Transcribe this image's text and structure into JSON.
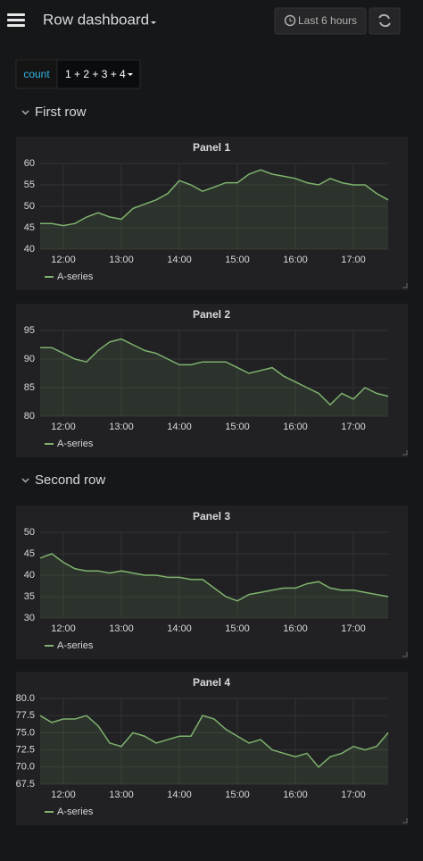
{
  "header": {
    "title": "Row dashboard",
    "time_range": "Last 6 hours"
  },
  "variable": {
    "label": "count",
    "value": "1 + 2 + 3 + 4"
  },
  "rows": [
    {
      "title": "First row"
    },
    {
      "title": "Second row"
    }
  ],
  "chart_data": [
    {
      "type": "line",
      "title": "Panel 1",
      "x": [
        11.6,
        11.8,
        12.0,
        12.2,
        12.4,
        12.6,
        12.8,
        13.0,
        13.2,
        13.4,
        13.6,
        13.8,
        14.0,
        14.2,
        14.4,
        14.6,
        14.8,
        15.0,
        15.2,
        15.4,
        15.6,
        15.8,
        16.0,
        16.2,
        16.4,
        16.6,
        16.8,
        17.0,
        17.2,
        17.4,
        17.6
      ],
      "series": [
        {
          "name": "A-series",
          "color": "#7eb26d",
          "values": [
            46,
            46,
            45.5,
            46,
            47.5,
            48.5,
            47.5,
            47,
            49.5,
            50.5,
            51.5,
            53,
            56,
            55,
            53.5,
            54.5,
            55.5,
            55.5,
            57.5,
            58.5,
            57.5,
            57,
            56.5,
            55.5,
            55,
            56.5,
            55.5,
            55,
            55,
            53,
            51.5
          ]
        }
      ],
      "xlim": [
        11.6,
        17.6
      ],
      "xticks": [
        {
          "value": 12,
          "label": "12:00"
        },
        {
          "value": 13,
          "label": "13:00"
        },
        {
          "value": 14,
          "label": "14:00"
        },
        {
          "value": 15,
          "label": "15:00"
        },
        {
          "value": 16,
          "label": "16:00"
        },
        {
          "value": 17,
          "label": "17:00"
        }
      ],
      "ylim": [
        40,
        60
      ],
      "yticks": [
        40,
        45,
        50,
        55,
        60
      ],
      "grid": true
    },
    {
      "type": "line",
      "title": "Panel 2",
      "x": [
        11.6,
        11.8,
        12.0,
        12.2,
        12.4,
        12.6,
        12.8,
        13.0,
        13.2,
        13.4,
        13.6,
        13.8,
        14.0,
        14.2,
        14.4,
        14.6,
        14.8,
        15.0,
        15.2,
        15.4,
        15.6,
        15.8,
        16.0,
        16.2,
        16.4,
        16.6,
        16.8,
        17.0,
        17.2,
        17.4,
        17.6
      ],
      "series": [
        {
          "name": "A-series",
          "color": "#7eb26d",
          "values": [
            92,
            92,
            91,
            90,
            89.5,
            91.5,
            93,
            93.5,
            92.5,
            91.5,
            91,
            90,
            89,
            89,
            89.5,
            89.5,
            89.5,
            88.5,
            87.5,
            88,
            88.5,
            87,
            86,
            85,
            84,
            82,
            84,
            83,
            85,
            84,
            83.5
          ]
        }
      ],
      "xlim": [
        11.6,
        17.6
      ],
      "xticks": [
        {
          "value": 12,
          "label": "12:00"
        },
        {
          "value": 13,
          "label": "13:00"
        },
        {
          "value": 14,
          "label": "14:00"
        },
        {
          "value": 15,
          "label": "15:00"
        },
        {
          "value": 16,
          "label": "16:00"
        },
        {
          "value": 17,
          "label": "17:00"
        }
      ],
      "ylim": [
        80,
        95
      ],
      "yticks": [
        80,
        85,
        90,
        95
      ],
      "grid": true
    },
    {
      "type": "line",
      "title": "Panel 3",
      "x": [
        11.6,
        11.8,
        12.0,
        12.2,
        12.4,
        12.6,
        12.8,
        13.0,
        13.2,
        13.4,
        13.6,
        13.8,
        14.0,
        14.2,
        14.4,
        14.6,
        14.8,
        15.0,
        15.2,
        15.4,
        15.6,
        15.8,
        16.0,
        16.2,
        16.4,
        16.6,
        16.8,
        17.0,
        17.2,
        17.4,
        17.6
      ],
      "series": [
        {
          "name": "A-series",
          "color": "#7eb26d",
          "values": [
            44,
            45,
            43,
            41.5,
            41,
            41,
            40.5,
            41,
            40.5,
            40,
            40,
            39.5,
            39.5,
            39,
            39,
            37,
            35,
            34,
            35.5,
            36,
            36.5,
            37,
            37,
            38,
            38.5,
            37,
            36.5,
            36.5,
            36,
            35.5,
            35
          ]
        }
      ],
      "xlim": [
        11.6,
        17.6
      ],
      "xticks": [
        {
          "value": 12,
          "label": "12:00"
        },
        {
          "value": 13,
          "label": "13:00"
        },
        {
          "value": 14,
          "label": "14:00"
        },
        {
          "value": 15,
          "label": "15:00"
        },
        {
          "value": 16,
          "label": "16:00"
        },
        {
          "value": 17,
          "label": "17:00"
        }
      ],
      "ylim": [
        30,
        50
      ],
      "yticks": [
        30,
        35,
        40,
        45,
        50
      ],
      "grid": true
    },
    {
      "type": "line",
      "title": "Panel 4",
      "x": [
        11.6,
        11.8,
        12.0,
        12.2,
        12.4,
        12.6,
        12.8,
        13.0,
        13.2,
        13.4,
        13.6,
        13.8,
        14.0,
        14.2,
        14.4,
        14.6,
        14.8,
        15.0,
        15.2,
        15.4,
        15.6,
        15.8,
        16.0,
        16.2,
        16.4,
        16.6,
        16.8,
        17.0,
        17.2,
        17.4,
        17.6
      ],
      "series": [
        {
          "name": "A-series",
          "color": "#7eb26d",
          "values": [
            77.5,
            76.5,
            77,
            77,
            77.5,
            76,
            73.5,
            73,
            75,
            74.5,
            73.5,
            74,
            74.5,
            74.5,
            77.5,
            77,
            75.5,
            74.5,
            73.5,
            74,
            72.5,
            72,
            71.5,
            72,
            70,
            71.5,
            72,
            73,
            72.5,
            73,
            75
          ]
        }
      ],
      "xlim": [
        11.6,
        17.6
      ],
      "xticks": [
        {
          "value": 12,
          "label": "12:00"
        },
        {
          "value": 13,
          "label": "13:00"
        },
        {
          "value": 14,
          "label": "14:00"
        },
        {
          "value": 15,
          "label": "15:00"
        },
        {
          "value": 16,
          "label": "16:00"
        },
        {
          "value": 17,
          "label": "17:00"
        }
      ],
      "ylim": [
        67.5,
        80
      ],
      "yticks": [
        67.5,
        {
          "value": 70,
          "label": "70.0"
        },
        72.5,
        {
          "value": 75,
          "label": "75.0"
        },
        77.5,
        {
          "value": 80,
          "label": "80.0"
        }
      ],
      "grid": true
    }
  ]
}
